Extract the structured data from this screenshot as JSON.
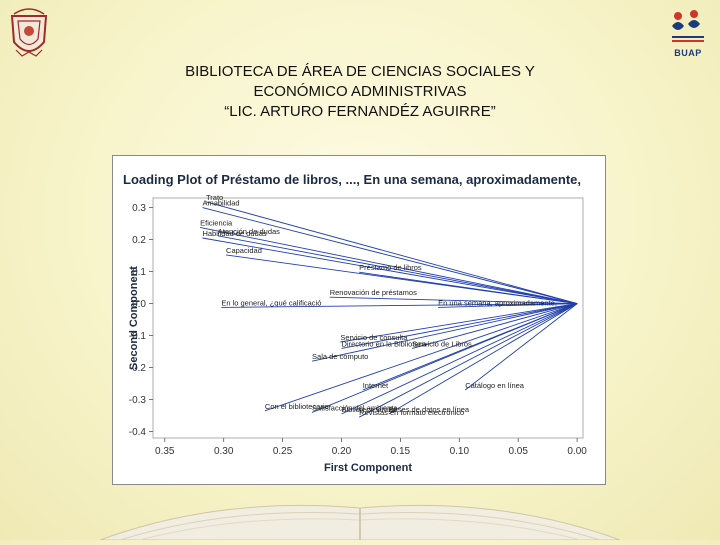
{
  "slide": {
    "title_lines": [
      "BIBLIOTECA DE ÁREA DE CIENCIAS SOCIALES Y",
      "ECONÓMICO ADMINISTRIVAS",
      "“LIC. ARTURO FERNANDÉZ AGUIRRE”"
    ],
    "logo_right_text": "BUAP"
  },
  "chart_data": {
    "type": "scatter",
    "title": "Loading Plot of Préstamo de libros, ..., En una semana, aproximadamente,",
    "xlabel": "First Component",
    "ylabel": "Second Component",
    "xlim": [
      0.36,
      -0.005
    ],
    "ylim": [
      -0.42,
      0.33
    ],
    "x_ticks": [
      "0.35",
      "0.30",
      "0.25",
      "0.20",
      "0.15",
      "0.10",
      "0.05",
      "0.00"
    ],
    "x_tick_values": [
      0.35,
      0.3,
      0.25,
      0.2,
      0.15,
      0.1,
      0.05,
      0.0
    ],
    "y_ticks": [
      "0.3",
      "0.2",
      "0.1",
      "0.0",
      "-0.1",
      "-0.2",
      "-0.3",
      "-0.4"
    ],
    "y_tick_values": [
      0.3,
      0.2,
      0.1,
      0.0,
      -0.1,
      -0.2,
      -0.3,
      -0.4
    ],
    "grid": false,
    "line_color": "#1f3fae",
    "origin": [
      0.0,
      0.0
    ],
    "loadings": [
      {
        "label": "Trato",
        "x": 0.315,
        "y": 0.318
      },
      {
        "label": "Amabilidad",
        "x": 0.318,
        "y": 0.3
      },
      {
        "label": "Eficiencia",
        "x": 0.32,
        "y": 0.238
      },
      {
        "label": "Atención de dudas",
        "x": 0.305,
        "y": 0.212
      },
      {
        "label": "Habilidad de dudas",
        "x": 0.318,
        "y": 0.205
      },
      {
        "label": "Capacidad",
        "x": 0.298,
        "y": 0.152
      },
      {
        "label": "Préstamo de libros",
        "x": 0.185,
        "y": 0.098
      },
      {
        "label": "En lo general, ¿qué calificació",
        "x": 0.302,
        "y": -0.012
      },
      {
        "label": "Renovación de préstamos",
        "x": 0.21,
        "y": 0.02
      },
      {
        "label": "En una semana, aproximadamente,",
        "x": 0.118,
        "y": -0.012
      },
      {
        "label": "Servicio de consulta",
        "x": 0.201,
        "y": -0.12
      },
      {
        "label": "Directorio en la Biblioteca",
        "x": 0.2,
        "y": -0.14
      },
      {
        "label": "Servicio de Libros",
        "x": 0.14,
        "y": -0.14
      },
      {
        "label": "Sala de cómputo",
        "x": 0.225,
        "y": -0.18
      },
      {
        "label": "Internet",
        "x": 0.182,
        "y": -0.27
      },
      {
        "label": "Catálogo en línea",
        "x": 0.095,
        "y": -0.27
      },
      {
        "label": "Con el bibliotecario",
        "x": 0.265,
        "y": -0.335
      },
      {
        "label": "Satisfacción del ambiente",
        "x": 0.225,
        "y": -0.34
      },
      {
        "label": "Biblioteca virtual",
        "x": 0.2,
        "y": -0.345
      },
      {
        "label": "Bases de datos en línea",
        "x": 0.16,
        "y": -0.345
      },
      {
        "label": "Revistas en formato electrónico",
        "x": 0.185,
        "y": -0.355
      }
    ]
  }
}
